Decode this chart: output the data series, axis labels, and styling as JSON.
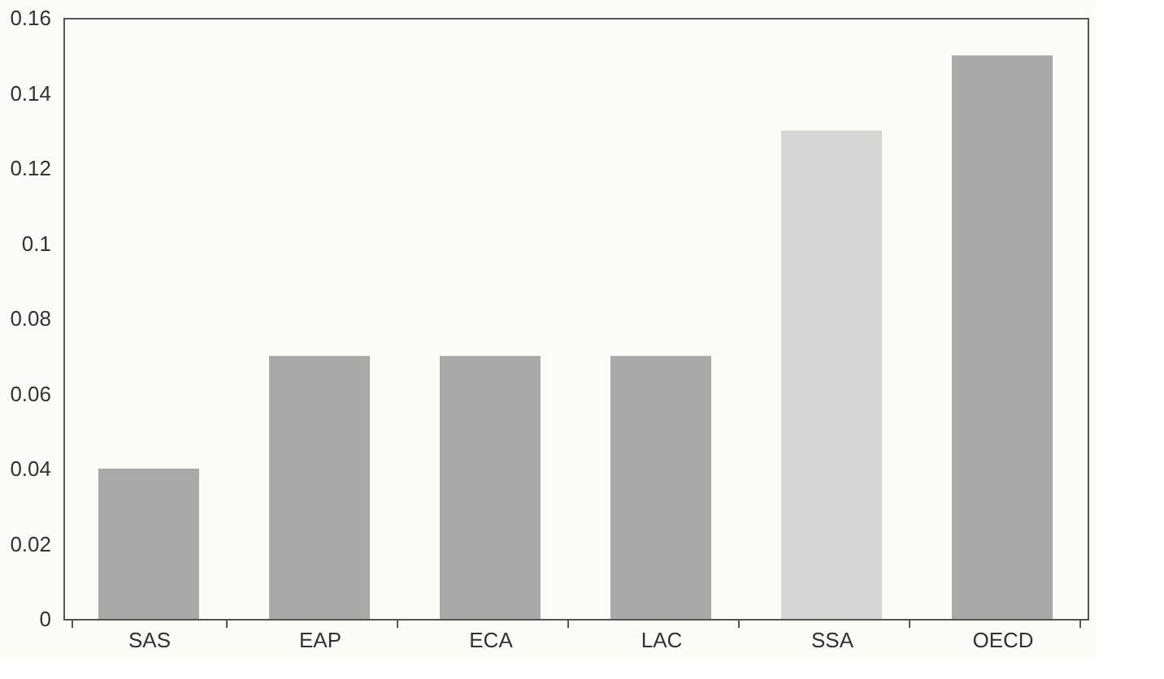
{
  "chart_data": {
    "type": "bar",
    "categories": [
      "SAS",
      "EAP",
      "ECA",
      "LAC",
      "SSA",
      "OECD"
    ],
    "values": [
      0.04,
      0.07,
      0.07,
      0.07,
      0.13,
      0.15
    ],
    "colors": [
      "#a9a9a9",
      "#a9a9a9",
      "#a9a9a9",
      "#a9a9a9",
      "#d6d6d6",
      "#a9a9a9"
    ],
    "ylim": [
      0,
      0.16
    ],
    "yticks": [
      0,
      0.02,
      0.04,
      0.06,
      0.08,
      0.1,
      0.12,
      0.14,
      0.16
    ],
    "grid": false
  }
}
